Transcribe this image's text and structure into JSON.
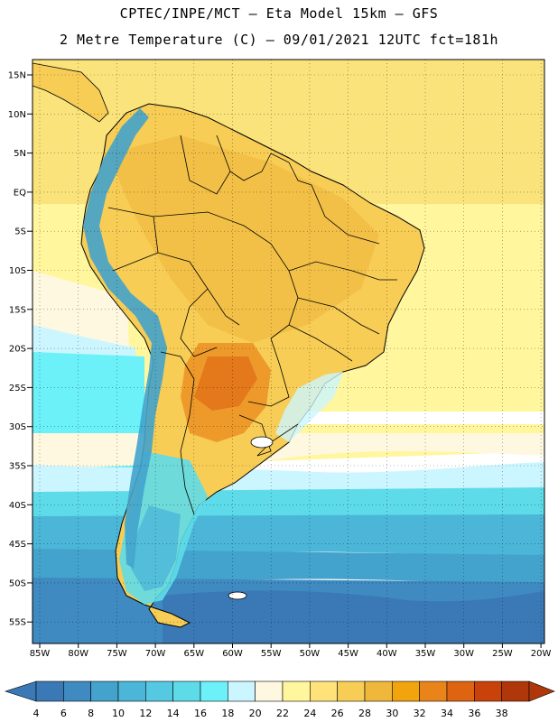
{
  "header": {
    "line1": "CPTEC/INPE/MCT –  Eta Model 15km – GFS",
    "line2": "2 Metre Temperature (C) – 09/01/2021 12UTC fct=181h"
  },
  "axes": {
    "lat_labels": [
      "15N",
      "10N",
      "5N",
      "EQ",
      "5S",
      "10S",
      "15S",
      "20S",
      "25S",
      "30S",
      "35S",
      "40S",
      "45S",
      "50S",
      "55S"
    ],
    "lon_labels": [
      "85W",
      "80W",
      "75W",
      "70W",
      "65W",
      "60W",
      "55W",
      "50W",
      "45W",
      "40W",
      "35W",
      "30W",
      "25W",
      "20W"
    ]
  },
  "colorbar": {
    "labels": [
      "4",
      "6",
      "8",
      "10",
      "12",
      "14",
      "16",
      "18",
      "20",
      "22",
      "24",
      "26",
      "28",
      "30",
      "32",
      "34",
      "36",
      "38"
    ],
    "colors": [
      "#3a79b5",
      "#3e8ac1",
      "#43a3cc",
      "#4bb6d8",
      "#55c9e2",
      "#5edbe9",
      "#6cf1f9",
      "#ccf6ff",
      "#fff8e0",
      "#fff69e",
      "#ffe27a",
      "#f7cd56",
      "#efb73c",
      "#f2a40f",
      "#e9841a",
      "#de6411",
      "#c8420a",
      "#b03709"
    ]
  },
  "colors": {
    "ocean_north": "#fbe37c",
    "ocean_warm": "#fff69e",
    "ocean_pale": "#fff8e0",
    "ocean_cold1": "#ccf6ff",
    "ocean_cold2": "#5edbe9",
    "ocean_cold3": "#4bb6d8",
    "ocean_cold4": "#3e8ac1",
    "ocean_cold5": "#3a79b5",
    "land_warm": "#f7cd56",
    "land_hot": "#efb73c",
    "land_hotter": "#e9841a",
    "andes": "#43a3cc",
    "border": "#000000"
  }
}
